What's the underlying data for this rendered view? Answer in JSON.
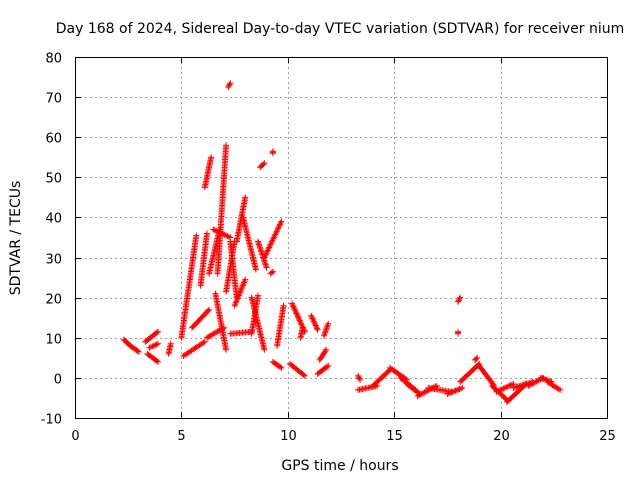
{
  "chart_data": {
    "type": "scatter",
    "title": "Day 168 of 2024, Sidereal Day-to-day VTEC variation (SDTVAR) for receiver nium",
    "xlabel": "GPS time / hours",
    "ylabel": "SDTVAR / TECUs",
    "xlim": [
      0,
      25
    ],
    "ylim": [
      -10,
      80
    ],
    "xticks": [
      0,
      5,
      10,
      15,
      20,
      25
    ],
    "yticks": [
      -10,
      0,
      10,
      20,
      30,
      40,
      50,
      60,
      70,
      80
    ],
    "grid": true,
    "marker": "+",
    "series_color": "#ff0000",
    "segments": [
      {
        "x0": 2.3,
        "x1": 2.6,
        "y0": 9.5,
        "y1": 8.0
      },
      {
        "x0": 2.6,
        "x1": 3.0,
        "y0": 8.0,
        "y1": 6.5
      },
      {
        "x0": 3.3,
        "x1": 3.9,
        "y0": 9.0,
        "y1": 11.5
      },
      {
        "x0": 3.4,
        "x1": 3.9,
        "y0": 6.0,
        "y1": 4.0
      },
      {
        "x0": 3.5,
        "x1": 3.9,
        "y0": 7.5,
        "y1": 8.5
      },
      {
        "x0": 4.4,
        "x1": 4.5,
        "y0": 6.0,
        "y1": 8.5
      },
      {
        "x0": 5.0,
        "x1": 5.7,
        "y0": 10.0,
        "y1": 35.5
      },
      {
        "x0": 5.1,
        "x1": 6.1,
        "y0": 5.5,
        "y1": 9.0
      },
      {
        "x0": 5.5,
        "x1": 6.3,
        "y0": 12.5,
        "y1": 17.0
      },
      {
        "x0": 5.9,
        "x1": 6.2,
        "y0": 23.0,
        "y1": 36.0
      },
      {
        "x0": 6.1,
        "x1": 6.4,
        "y0": 47.5,
        "y1": 55.0
      },
      {
        "x0": 6.2,
        "x1": 7.0,
        "y0": 10.0,
        "y1": 12.5
      },
      {
        "x0": 6.3,
        "x1": 6.8,
        "y0": 26.0,
        "y1": 37.0
      },
      {
        "x0": 6.5,
        "x1": 7.3,
        "y0": 37.0,
        "y1": 35.0
      },
      {
        "x0": 6.6,
        "x1": 7.1,
        "y0": 21.0,
        "y1": 7.0
      },
      {
        "x0": 6.7,
        "x1": 7.1,
        "y0": 26.0,
        "y1": 58.0
      },
      {
        "x0": 7.1,
        "x1": 7.5,
        "y0": 21.5,
        "y1": 34.0
      },
      {
        "x0": 7.2,
        "x1": 7.3,
        "y0": 72.5,
        "y1": 73.5
      },
      {
        "x0": 7.3,
        "x1": 7.6,
        "y0": 34.0,
        "y1": 20.0
      },
      {
        "x0": 7.3,
        "x1": 8.3,
        "y0": 11.0,
        "y1": 11.5
      },
      {
        "x0": 7.5,
        "x1": 8.0,
        "y0": 18.0,
        "y1": 24.5
      },
      {
        "x0": 7.6,
        "x1": 8.0,
        "y0": 34.0,
        "y1": 45.0
      },
      {
        "x0": 7.9,
        "x1": 8.5,
        "y0": 40.0,
        "y1": 27.0
      },
      {
        "x0": 8.3,
        "x1": 8.6,
        "y0": 11.0,
        "y1": 20.5
      },
      {
        "x0": 8.3,
        "x1": 8.9,
        "y0": 20.0,
        "y1": 7.0
      },
      {
        "x0": 8.6,
        "x1": 9.0,
        "y0": 34.0,
        "y1": 27.5
      },
      {
        "x0": 8.7,
        "x1": 8.9,
        "y0": 52.5,
        "y1": 53.5
      },
      {
        "x0": 8.9,
        "x1": 9.7,
        "y0": 30.0,
        "y1": 39.0
      },
      {
        "x0": 9.2,
        "x1": 9.3,
        "y0": 26.0,
        "y1": 26.5
      },
      {
        "x0": 9.3,
        "x1": 9.3,
        "y0": 56.0,
        "y1": 56.5
      },
      {
        "x0": 9.3,
        "x1": 9.7,
        "y0": 4.0,
        "y1": 2.5
      },
      {
        "x0": 9.5,
        "x1": 9.8,
        "y0": 8.0,
        "y1": 18.0
      },
      {
        "x0": 10.1,
        "x1": 10.8,
        "y0": 3.5,
        "y1": 0.5
      },
      {
        "x0": 10.2,
        "x1": 10.8,
        "y0": 18.5,
        "y1": 11.5
      },
      {
        "x0": 10.6,
        "x1": 10.7,
        "y0": 10.0,
        "y1": 12.5
      },
      {
        "x0": 11.1,
        "x1": 11.4,
        "y0": 15.5,
        "y1": 12.0
      },
      {
        "x0": 11.4,
        "x1": 11.9,
        "y0": 1.0,
        "y1": 3.0
      },
      {
        "x0": 11.5,
        "x1": 11.8,
        "y0": 4.5,
        "y1": 7.0
      },
      {
        "x0": 11.7,
        "x1": 11.9,
        "y0": 10.5,
        "y1": 13.5
      },
      {
        "x0": 13.3,
        "x1": 13.4,
        "y0": 0.5,
        "y1": -0.5
      },
      {
        "x0": 13.3,
        "x1": 14.2,
        "y0": -3.0,
        "y1": -2.0
      },
      {
        "x0": 14.0,
        "x1": 14.8,
        "y0": -2.0,
        "y1": 2.0
      },
      {
        "x0": 14.8,
        "x1": 15.6,
        "y0": 2.5,
        "y1": -0.5
      },
      {
        "x0": 15.3,
        "x1": 16.0,
        "y0": 0.0,
        "y1": -3.0
      },
      {
        "x0": 15.6,
        "x1": 16.2,
        "y0": -1.5,
        "y1": -4.0
      },
      {
        "x0": 16.1,
        "x1": 17.0,
        "y0": -4.5,
        "y1": -2.0
      },
      {
        "x0": 16.6,
        "x1": 17.7,
        "y0": -2.5,
        "y1": -3.5
      },
      {
        "x0": 17.5,
        "x1": 18.2,
        "y0": -4.0,
        "y1": -2.5
      },
      {
        "x0": 18.0,
        "x1": 18.1,
        "y0": 19.0,
        "y1": 20.0
      },
      {
        "x0": 18.0,
        "x1": 18.0,
        "y0": 11.0,
        "y1": 11.5
      },
      {
        "x0": 18.1,
        "x1": 19.0,
        "y0": -1.0,
        "y1": 3.5
      },
      {
        "x0": 18.8,
        "x1": 18.9,
        "y0": 4.5,
        "y1": 5.0
      },
      {
        "x0": 19.0,
        "x1": 19.7,
        "y0": 3.0,
        "y1": -2.0
      },
      {
        "x0": 19.6,
        "x1": 20.3,
        "y0": -2.0,
        "y1": -5.5
      },
      {
        "x0": 19.8,
        "x1": 20.6,
        "y0": -3.5,
        "y1": -1.5
      },
      {
        "x0": 20.3,
        "x1": 21.2,
        "y0": -6.0,
        "y1": -1.5
      },
      {
        "x0": 20.6,
        "x1": 21.5,
        "y0": -2.5,
        "y1": -1.0
      },
      {
        "x0": 21.3,
        "x1": 22.0,
        "y0": -2.0,
        "y1": 0.0
      },
      {
        "x0": 21.9,
        "x1": 22.4,
        "y0": 0.0,
        "y1": -1.0
      },
      {
        "x0": 22.2,
        "x1": 22.8,
        "y0": -1.0,
        "y1": -3.0
      }
    ]
  }
}
